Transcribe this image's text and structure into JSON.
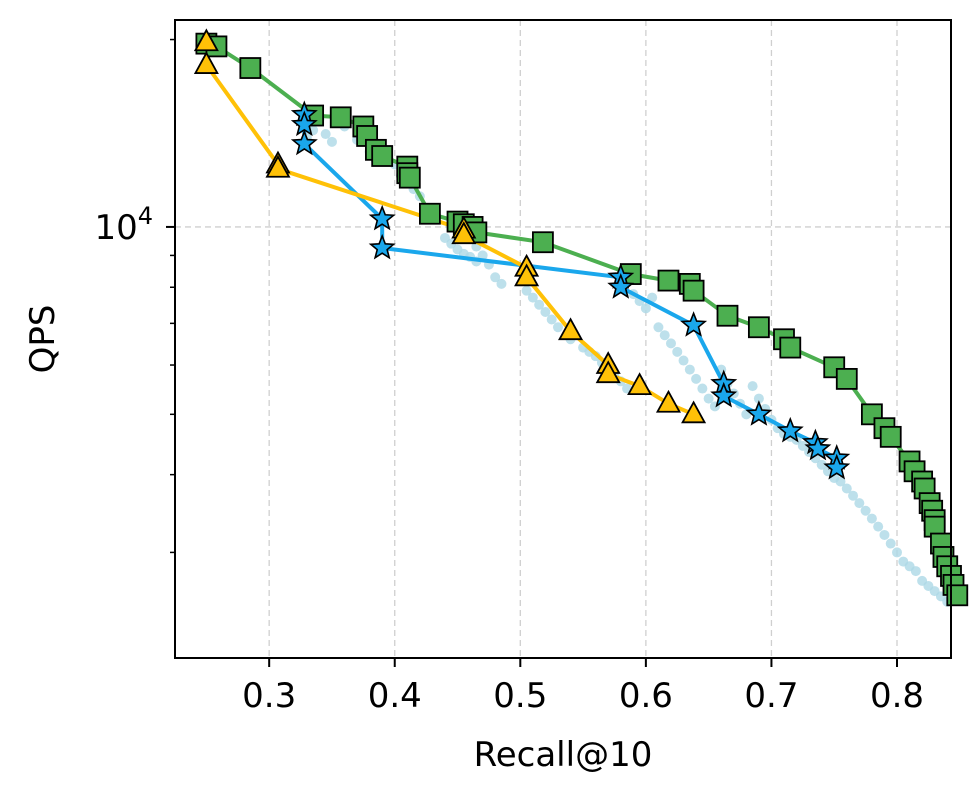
{
  "chart_data": {
    "type": "scatter",
    "title": "",
    "xlabel": "Recall@10",
    "ylabel": "QPS",
    "xlim": [
      0.225,
      0.843
    ],
    "ylim": [
      2030,
      21500
    ],
    "yscale": "log",
    "grid": true,
    "x_ticks": [
      {
        "value": 0.3,
        "label": "0.3"
      },
      {
        "value": 0.4,
        "label": "0.4"
      },
      {
        "value": 0.5,
        "label": "0.5"
      },
      {
        "value": 0.6,
        "label": "0.6"
      },
      {
        "value": 0.7,
        "label": "0.7"
      },
      {
        "value": 0.8,
        "label": "0.8"
      }
    ],
    "y_ticks": [
      {
        "value": 10000,
        "base": "10",
        "exp": "4"
      }
    ],
    "y_minor_ticks": [
      3000,
      4000,
      5000,
      6000,
      7000,
      8000,
      9000,
      20000
    ],
    "colors": {
      "green": "#4caf50",
      "blue": "#1aa7ec",
      "orange": "#ffc107",
      "background_points": "#add8e6"
    },
    "series": [
      {
        "marker": "square",
        "color": "#4caf50",
        "line": true,
        "points": [
          [
            0.25,
            19700
          ],
          [
            0.258,
            19500
          ],
          [
            0.285,
            18000
          ],
          [
            0.335,
            15100
          ],
          [
            0.357,
            15000
          ],
          [
            0.375,
            14500
          ],
          [
            0.378,
            14000
          ],
          [
            0.385,
            13300
          ],
          [
            0.39,
            13000
          ],
          [
            0.41,
            12500
          ],
          [
            0.41,
            12200
          ],
          [
            0.412,
            12000
          ],
          [
            0.428,
            10500
          ],
          [
            0.45,
            10200
          ],
          [
            0.455,
            10100
          ],
          [
            0.462,
            10000
          ],
          [
            0.465,
            9800
          ],
          [
            0.518,
            9450
          ],
          [
            0.588,
            8400
          ],
          [
            0.618,
            8200
          ],
          [
            0.635,
            8100
          ],
          [
            0.638,
            7900
          ],
          [
            0.665,
            7200
          ],
          [
            0.69,
            6900
          ],
          [
            0.71,
            6600
          ],
          [
            0.715,
            6400
          ],
          [
            0.75,
            5950
          ],
          [
            0.76,
            5700
          ],
          [
            0.78,
            5000
          ],
          [
            0.79,
            4750
          ],
          [
            0.795,
            4600
          ],
          [
            0.81,
            4200
          ],
          [
            0.814,
            4050
          ],
          [
            0.82,
            3900
          ],
          [
            0.822,
            3800
          ],
          [
            0.826,
            3600
          ],
          [
            0.828,
            3500
          ],
          [
            0.83,
            3380
          ],
          [
            0.83,
            3300
          ],
          [
            0.835,
            3100
          ],
          [
            0.837,
            2950
          ],
          [
            0.84,
            2850
          ],
          [
            0.843,
            2750
          ],
          [
            0.845,
            2660
          ],
          [
            0.848,
            2560
          ]
        ]
      },
      {
        "marker": "star",
        "color": "#1aa7ec",
        "line": true,
        "points": [
          [
            0.328,
            15150
          ],
          [
            0.328,
            14600
          ],
          [
            0.328,
            13600
          ],
          [
            0.39,
            10300
          ],
          [
            0.39,
            9250
          ],
          [
            0.58,
            8300
          ],
          [
            0.58,
            8000
          ],
          [
            0.638,
            6950
          ],
          [
            0.662,
            5600
          ],
          [
            0.662,
            5350
          ],
          [
            0.69,
            5000
          ],
          [
            0.715,
            4700
          ],
          [
            0.735,
            4500
          ],
          [
            0.737,
            4400
          ],
          [
            0.752,
            4250
          ],
          [
            0.752,
            4100
          ]
        ]
      },
      {
        "marker": "triangle",
        "color": "#ffc107",
        "line": true,
        "points": [
          [
            0.25,
            19800
          ],
          [
            0.25,
            18200
          ],
          [
            0.307,
            12600
          ],
          [
            0.307,
            12400
          ],
          [
            0.455,
            9900
          ],
          [
            0.455,
            9700
          ],
          [
            0.505,
            8600
          ],
          [
            0.505,
            8300
          ],
          [
            0.54,
            6800
          ],
          [
            0.57,
            6000
          ],
          [
            0.57,
            5800
          ],
          [
            0.595,
            5550
          ],
          [
            0.618,
            5200
          ],
          [
            0.638,
            5000
          ]
        ]
      }
    ],
    "background_points": [
      [
        0.33,
        13900
      ],
      [
        0.335,
        14300
      ],
      [
        0.34,
        14900
      ],
      [
        0.345,
        14100
      ],
      [
        0.35,
        13700
      ],
      [
        0.36,
        14500
      ],
      [
        0.37,
        13800
      ],
      [
        0.38,
        13200
      ],
      [
        0.385,
        12800
      ],
      [
        0.39,
        13300
      ],
      [
        0.4,
        12600
      ],
      [
        0.405,
        12100
      ],
      [
        0.41,
        11800
      ],
      [
        0.415,
        11500
      ],
      [
        0.42,
        11200
      ],
      [
        0.44,
        9600
      ],
      [
        0.445,
        9400
      ],
      [
        0.45,
        9200
      ],
      [
        0.455,
        9050
      ],
      [
        0.46,
        8950
      ],
      [
        0.465,
        8800
      ],
      [
        0.465,
        9300
      ],
      [
        0.47,
        9000
      ],
      [
        0.475,
        8700
      ],
      [
        0.48,
        8300
      ],
      [
        0.485,
        8100
      ],
      [
        0.505,
        7900
      ],
      [
        0.51,
        7700
      ],
      [
        0.515,
        7500
      ],
      [
        0.52,
        7300
      ],
      [
        0.525,
        7100
      ],
      [
        0.53,
        6900
      ],
      [
        0.54,
        6600
      ],
      [
        0.55,
        6400
      ],
      [
        0.555,
        6300
      ],
      [
        0.56,
        6200
      ],
      [
        0.565,
        6050
      ],
      [
        0.57,
        5900
      ],
      [
        0.575,
        5750
      ],
      [
        0.58,
        5650
      ],
      [
        0.585,
        5500
      ],
      [
        0.59,
        7800
      ],
      [
        0.595,
        7600
      ],
      [
        0.6,
        7400
      ],
      [
        0.605,
        7700
      ],
      [
        0.61,
        6900
      ],
      [
        0.615,
        6700
      ],
      [
        0.62,
        6500
      ],
      [
        0.625,
        6300
      ],
      [
        0.63,
        6100
      ],
      [
        0.635,
        5900
      ],
      [
        0.64,
        5700
      ],
      [
        0.645,
        5500
      ],
      [
        0.65,
        5300
      ],
      [
        0.655,
        5150
      ],
      [
        0.66,
        5900
      ],
      [
        0.665,
        5600
      ],
      [
        0.67,
        5400
      ],
      [
        0.675,
        5200
      ],
      [
        0.68,
        5000
      ],
      [
        0.685,
        5550
      ],
      [
        0.69,
        5300
      ],
      [
        0.695,
        5100
      ],
      [
        0.7,
        4900
      ],
      [
        0.705,
        4750
      ],
      [
        0.71,
        4650
      ],
      [
        0.715,
        4600
      ],
      [
        0.72,
        4550
      ],
      [
        0.725,
        4450
      ],
      [
        0.73,
        4350
      ],
      [
        0.735,
        4250
      ],
      [
        0.74,
        4150
      ],
      [
        0.745,
        4050
      ],
      [
        0.75,
        3950
      ],
      [
        0.755,
        3900
      ],
      [
        0.76,
        3800
      ],
      [
        0.765,
        3700
      ],
      [
        0.77,
        3600
      ],
      [
        0.775,
        3500
      ],
      [
        0.78,
        3400
      ],
      [
        0.785,
        3300
      ],
      [
        0.79,
        3200
      ],
      [
        0.795,
        3100
      ],
      [
        0.8,
        3000
      ],
      [
        0.805,
        2900
      ],
      [
        0.81,
        2850
      ],
      [
        0.815,
        2800
      ],
      [
        0.82,
        2700
      ],
      [
        0.825,
        2650
      ],
      [
        0.83,
        2600
      ],
      [
        0.835,
        2550
      ],
      [
        0.84,
        2500
      ]
    ]
  }
}
